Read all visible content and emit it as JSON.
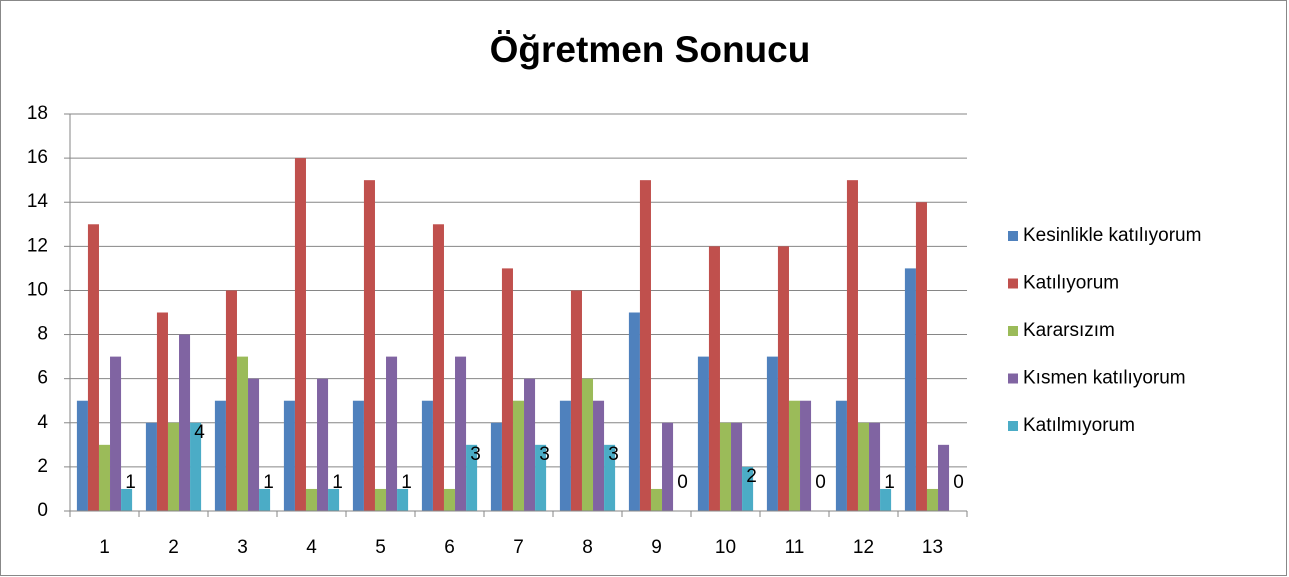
{
  "chart_data": {
    "type": "bar",
    "title": "Öğretmen Sonucu",
    "categories": [
      "1",
      "2",
      "3",
      "4",
      "5",
      "6",
      "7",
      "8",
      "9",
      "10",
      "11",
      "12",
      "13"
    ],
    "series": [
      {
        "name": "Kesinlikle katılıyorum",
        "color": "#4f81bd",
        "values": [
          5,
          4,
          5,
          5,
          5,
          5,
          4,
          5,
          9,
          7,
          7,
          5,
          11
        ]
      },
      {
        "name": "Katılıyorum",
        "color": "#c0504d",
        "values": [
          13,
          9,
          10,
          16,
          15,
          13,
          11,
          10,
          15,
          12,
          12,
          15,
          14
        ]
      },
      {
        "name": "Kararsızım",
        "color": "#9bbb59",
        "values": [
          3,
          4,
          7,
          1,
          1,
          1,
          5,
          6,
          1,
          4,
          5,
          4,
          1
        ]
      },
      {
        "name": "Kısmen katılıyorum",
        "color": "#8064a2",
        "values": [
          7,
          8,
          6,
          6,
          7,
          7,
          6,
          5,
          4,
          4,
          5,
          4,
          3
        ]
      },
      {
        "name": "Katılmıyorum",
        "color": "#4bacc6",
        "values": [
          1,
          4,
          1,
          1,
          1,
          3,
          3,
          3,
          0,
          2,
          0,
          1,
          0
        ],
        "data_labels": true
      }
    ],
    "ylim": [
      0,
      18
    ],
    "yticks": [
      0,
      2,
      4,
      6,
      8,
      10,
      12,
      14,
      16,
      18
    ],
    "grid": true,
    "legend": "right"
  }
}
